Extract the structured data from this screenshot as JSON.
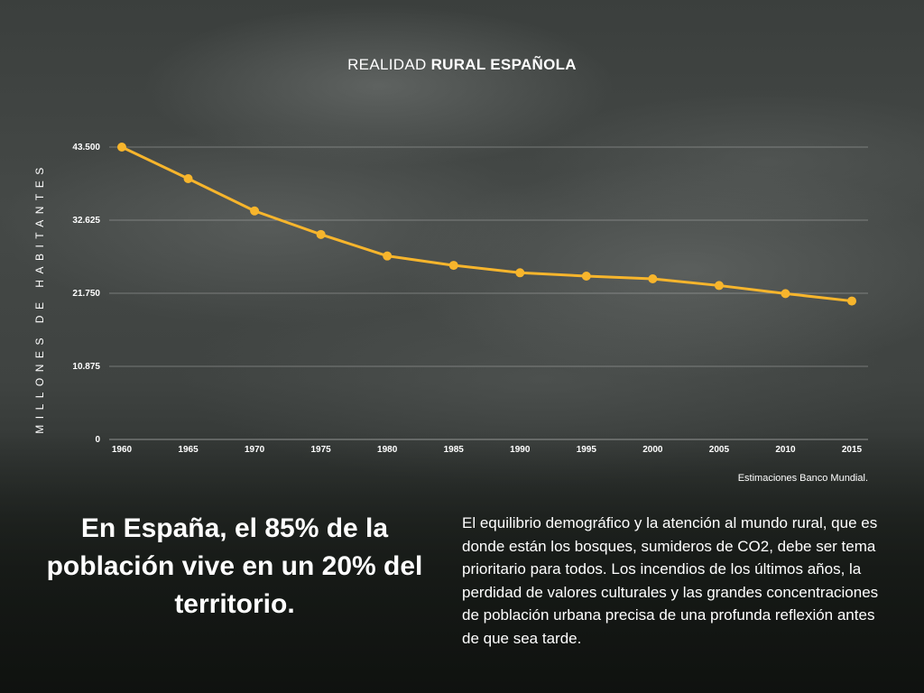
{
  "title": {
    "regular": "REALIDAD",
    "bold": "RURAL ESPAÑOLA"
  },
  "chart_data": {
    "type": "line",
    "title": "REALIDAD RURAL ESPAÑOLA",
    "xlabel": "",
    "ylabel": "MILLONES DE HABITANTES",
    "x": [
      "1960",
      "1965",
      "1970",
      "1975",
      "1980",
      "1985",
      "1990",
      "1995",
      "2000",
      "2005",
      "2010",
      "2015"
    ],
    "series": [
      {
        "values": [
          43500,
          38800,
          34000,
          30500,
          27300,
          25900,
          24800,
          24300,
          23900,
          22900,
          21700,
          20600
        ]
      }
    ],
    "yticks": [
      "0",
      "10.875",
      "21.750",
      "32.625",
      "43.500"
    ],
    "ylim": [
      0,
      43500
    ],
    "grid": true,
    "line_color": "#f7b52c"
  },
  "source": "Estimaciones Banco Mundial.",
  "headline": "En España, el 85% de la población vive en un 20% del territorio.",
  "body": "El equilibrio demográfico y la atención al mundo rural, que es donde están los bosques, sumideros de CO2, debe ser tema prioritario para todos. Los incendios de los últimos años, la perdidad de valores culturales y las grandes concentraciones de población urbana precisa de una profunda reflexión antes de que sea tarde."
}
